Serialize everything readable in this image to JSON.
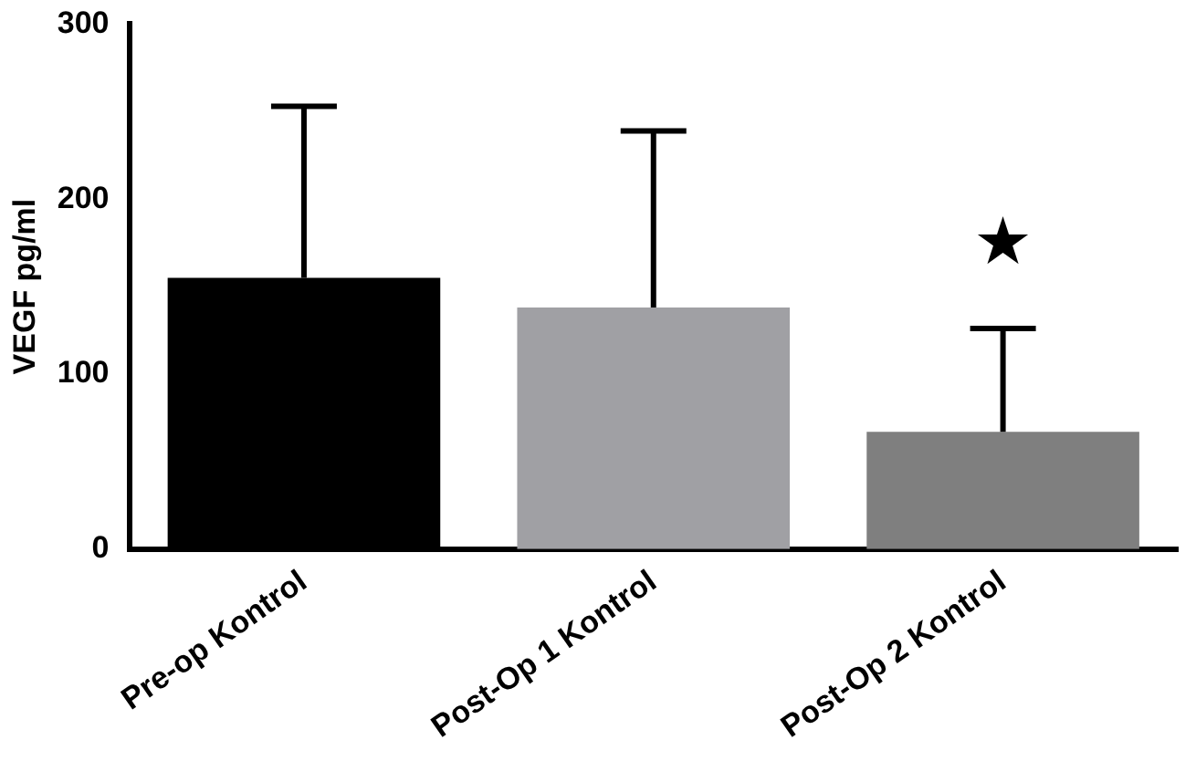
{
  "chart_data": {
    "type": "bar",
    "ylabel": "VEGF pg/ml",
    "categories": [
      "Pre-op Kontrol",
      "Post-Op 1 Kontrol",
      "Post-Op 2 Kontrol"
    ],
    "values": [
      155,
      138,
      67
    ],
    "colors": [
      "#000000",
      "#a0a0a4",
      "#7f7f7f"
    ],
    "errors": [
      [
        155,
        253
      ],
      [
        138,
        239
      ],
      [
        67,
        126
      ]
    ],
    "ylim": [
      0,
      300
    ],
    "yticks": [
      0,
      100,
      200,
      300
    ],
    "grid": false,
    "legend": false,
    "annotations": [
      "★"
    ]
  }
}
